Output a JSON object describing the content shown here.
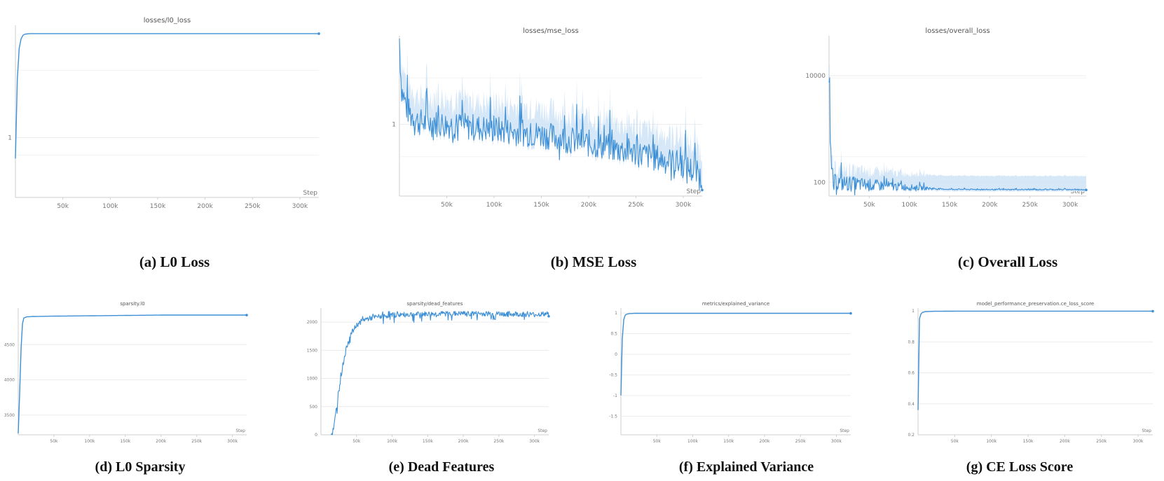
{
  "figure": {
    "captions": [
      "(a) L0 Loss",
      "(b) MSE Loss",
      "(c) Overall Loss",
      "(d) L0 Sparsity",
      "(e) Dead Features",
      "(f) Explained Variance",
      "(g) CE Loss Score"
    ]
  },
  "colors": {
    "line": "#3d8fd6",
    "band": "#cfe3f6",
    "grid": "#ececec",
    "axis": "#cfcfcf",
    "tick_text": "#777777",
    "title_text": "#555555"
  },
  "chart_data": [
    {
      "type": "line",
      "title": "losses/l0_loss",
      "xlabel": "Step",
      "x_ticks": [
        "50k",
        "100k",
        "150k",
        "200k",
        "250k",
        "300k"
      ],
      "x_tick_values": [
        50000,
        100000,
        150000,
        200000,
        250000,
        300000
      ],
      "xlim": [
        0,
        320000
      ],
      "y_scale": "log",
      "y_ticks": [
        "1"
      ],
      "y_tick_values": [
        1
      ],
      "ylim": [
        0.36,
        6.5
      ],
      "grid": true,
      "series": [
        {
          "x": [
            0,
            1000,
            2000,
            3000,
            4000,
            6000,
            8000,
            10000,
            15000,
            50000,
            100000,
            150000,
            200000,
            250000,
            300000,
            320000
          ],
          "y": [
            0.7,
            1.6,
            2.7,
            3.8,
            4.6,
            5.4,
            5.75,
            5.85,
            5.9,
            5.9,
            5.9,
            5.9,
            5.9,
            5.9,
            5.9,
            5.9
          ]
        }
      ]
    },
    {
      "type": "line",
      "title": "losses/mse_loss",
      "xlabel": "Step",
      "x_ticks": [
        "50k",
        "100k",
        "150k",
        "200k",
        "250k",
        "300k"
      ],
      "x_tick_values": [
        50000,
        100000,
        150000,
        200000,
        250000,
        300000
      ],
      "xlim": [
        0,
        320000
      ],
      "y_scale": "log",
      "y_ticks": [
        "1"
      ],
      "y_tick_values": [
        1
      ],
      "ylim": [
        0.27,
        4.8
      ],
      "grid": true,
      "series": [
        {
          "noisy": true,
          "x": [
            0,
            1000,
            3000,
            8000,
            20000,
            50000,
            100000,
            150000,
            200000,
            250000,
            300000,
            320000
          ],
          "y": [
            4.5,
            2.3,
            1.6,
            1.15,
            0.92,
            0.88,
            0.8,
            0.73,
            0.62,
            0.52,
            0.42,
            0.33
          ]
        }
      ]
    },
    {
      "type": "line",
      "title": "losses/overall_loss",
      "xlabel": "Step",
      "x_ticks": [
        "50k",
        "100k",
        "150k",
        "200k",
        "250k",
        "300k"
      ],
      "x_tick_values": [
        50000,
        100000,
        150000,
        200000,
        250000,
        300000
      ],
      "xlim": [
        0,
        320000
      ],
      "y_scale": "log",
      "y_ticks": [
        "10000",
        "100"
      ],
      "y_tick_values": [
        10000,
        100
      ],
      "ylim": [
        55,
        50000
      ],
      "grid": true,
      "series": [
        {
          "noisy": true,
          "x": [
            0,
            500,
            1500,
            3000,
            5000,
            8000,
            15000,
            50000,
            100000,
            150000,
            200000,
            250000,
            300000,
            320000
          ],
          "y": [
            8000,
            15000,
            400,
            130,
            65,
            85,
            80,
            78,
            75,
            73,
            72,
            72,
            72,
            72
          ]
        }
      ]
    },
    {
      "type": "line",
      "title": "sparsity.l0",
      "xlabel": "Step",
      "x_ticks": [
        "50k",
        "100k",
        "150k",
        "200k",
        "250k",
        "300k"
      ],
      "x_tick_values": [
        50000,
        100000,
        150000,
        200000,
        250000,
        300000
      ],
      "xlim": [
        0,
        320000
      ],
      "y_ticks": [
        "4500",
        "4000",
        "3500"
      ],
      "y_tick_values": [
        4500,
        4000,
        3500
      ],
      "ylim": [
        3220,
        4980
      ],
      "grid": true,
      "series": [
        {
          "x": [
            0,
            2000,
            4000,
            6000,
            8000,
            12000,
            20000,
            50000,
            100000,
            150000,
            200000,
            250000,
            300000,
            320000
          ],
          "y": [
            3240,
            3800,
            4450,
            4800,
            4880,
            4895,
            4900,
            4905,
            4910,
            4915,
            4920,
            4920,
            4920,
            4920
          ]
        }
      ]
    },
    {
      "type": "line",
      "title": "sparsity/dead_features",
      "xlabel": "Step",
      "x_ticks": [
        "50k",
        "100k",
        "150k",
        "200k",
        "250k",
        "300k"
      ],
      "x_tick_values": [
        50000,
        100000,
        150000,
        200000,
        250000,
        300000
      ],
      "xlim": [
        0,
        320000
      ],
      "y_ticks": [
        "2000",
        "1500",
        "1000",
        "500",
        "0"
      ],
      "y_tick_values": [
        2000,
        1500,
        1000,
        500,
        0
      ],
      "ylim": [
        0,
        2200
      ],
      "grid": true,
      "series": [
        {
          "noisy": true,
          "x": [
            14000,
            18000,
            22000,
            26000,
            30000,
            35000,
            40000,
            50000,
            60000,
            80000,
            100000,
            150000,
            200000,
            250000,
            300000,
            320000
          ],
          "y": [
            0,
            100,
            500,
            900,
            1200,
            1500,
            1750,
            1950,
            2050,
            2100,
            2130,
            2150,
            2160,
            2150,
            2140,
            2150
          ]
        }
      ]
    },
    {
      "type": "line",
      "title": "metrics/explained_variance",
      "xlabel": "Step",
      "x_ticks": [
        "50k",
        "100k",
        "150k",
        "200k",
        "250k",
        "300k"
      ],
      "x_tick_values": [
        50000,
        100000,
        150000,
        200000,
        250000,
        300000
      ],
      "xlim": [
        0,
        320000
      ],
      "y_ticks": [
        "1",
        "0.5",
        "0",
        "-0.5",
        "-1",
        "-1.5"
      ],
      "y_tick_values": [
        1,
        0.5,
        0,
        -0.5,
        -1,
        -1.5
      ],
      "ylim": [
        -1.95,
        1.05
      ],
      "grid": true,
      "series": [
        {
          "x": [
            0,
            600,
            1500,
            3000,
            5000,
            8000,
            12000,
            20000,
            50000,
            100000,
            150000,
            200000,
            250000,
            300000,
            320000
          ],
          "y": [
            -1.0,
            -0.5,
            0.2,
            0.75,
            0.93,
            0.97,
            0.985,
            0.99,
            0.99,
            0.99,
            0.99,
            0.99,
            0.99,
            0.99,
            0.99
          ]
        }
      ]
    },
    {
      "type": "line",
      "title": "model_performance_preservation.ce_loss_score",
      "xlabel": "Step",
      "x_ticks": [
        "50k",
        "100k",
        "150k",
        "200k",
        "250k",
        "300k"
      ],
      "x_tick_values": [
        50000,
        100000,
        150000,
        200000,
        250000,
        300000
      ],
      "xlim": [
        0,
        320000
      ],
      "y_ticks": [
        "1",
        "0.8",
        "0.6",
        "0.4",
        "0.2"
      ],
      "y_tick_values": [
        1,
        0.8,
        0.6,
        0.4,
        0.2
      ],
      "ylim": [
        0.2,
        1.0
      ],
      "grid": true,
      "series": [
        {
          "x": [
            0,
            800,
            2000,
            4000,
            6000,
            10000,
            20000,
            50000,
            100000,
            150000,
            200000,
            250000,
            300000,
            320000
          ],
          "y": [
            0.36,
            0.8,
            0.95,
            0.98,
            0.99,
            0.995,
            0.997,
            0.998,
            0.998,
            0.998,
            0.998,
            0.998,
            0.998,
            0.998
          ]
        }
      ]
    }
  ]
}
